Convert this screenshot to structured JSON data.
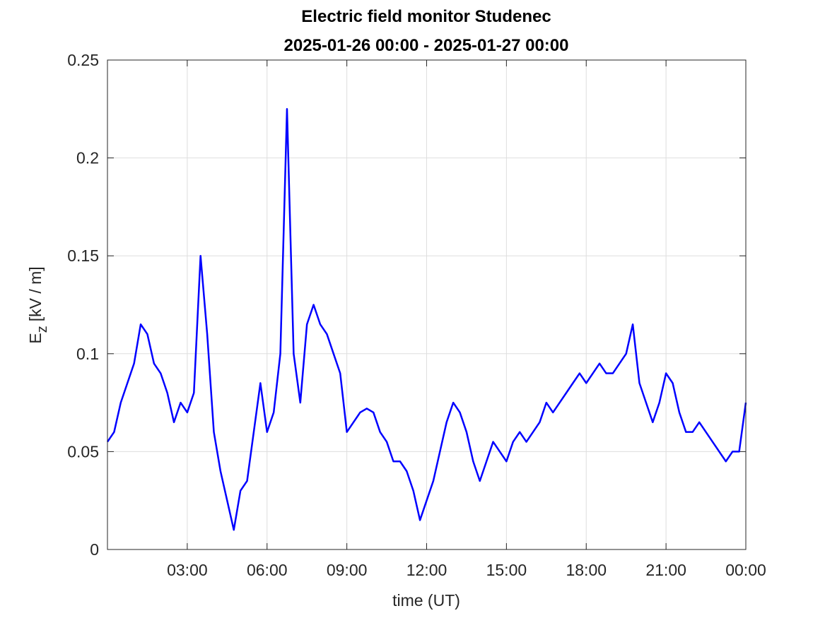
{
  "chart_data": {
    "type": "line",
    "title": "Electric field monitor Studenec",
    "subtitle": "2025-01-26 00:00 - 2025-01-27 00:00",
    "xlabel": "time (UT)",
    "ylabel": {
      "main": "E",
      "sub": "z",
      "unit": "[kV / m]"
    },
    "x": [
      0,
      0.25,
      0.5,
      0.75,
      1,
      1.25,
      1.5,
      1.75,
      2,
      2.25,
      2.5,
      2.75,
      3,
      3.25,
      3.5,
      3.75,
      4,
      4.25,
      4.5,
      4.75,
      5,
      5.25,
      5.5,
      5.75,
      6,
      6.25,
      6.5,
      6.75,
      7,
      7.25,
      7.5,
      7.75,
      8,
      8.25,
      8.5,
      8.75,
      9,
      9.25,
      9.5,
      9.75,
      10,
      10.25,
      10.5,
      10.75,
      11,
      11.25,
      11.5,
      11.75,
      12,
      12.25,
      12.5,
      12.75,
      13,
      13.25,
      13.5,
      13.75,
      14,
      14.25,
      14.5,
      14.75,
      15,
      15.25,
      15.5,
      15.75,
      16,
      16.25,
      16.5,
      16.75,
      17,
      17.25,
      17.5,
      17.75,
      18,
      18.25,
      18.5,
      18.75,
      19,
      19.25,
      19.5,
      19.75,
      20,
      20.25,
      20.5,
      20.75,
      21,
      21.25,
      21.5,
      21.75,
      22,
      22.25,
      22.5,
      22.75,
      23,
      23.25,
      23.5,
      23.75,
      24
    ],
    "series": [
      {
        "name": "Ez",
        "color": "#0000ff",
        "values": [
          0.055,
          0.06,
          0.075,
          0.085,
          0.095,
          0.115,
          0.11,
          0.095,
          0.09,
          0.08,
          0.065,
          0.075,
          0.07,
          0.08,
          0.15,
          0.11,
          0.06,
          0.04,
          0.025,
          0.01,
          0.03,
          0.035,
          0.06,
          0.085,
          0.06,
          0.07,
          0.1,
          0.225,
          0.1,
          0.075,
          0.115,
          0.125,
          0.115,
          0.11,
          0.1,
          0.09,
          0.06,
          0.065,
          0.07,
          0.072,
          0.07,
          0.06,
          0.055,
          0.045,
          0.045,
          0.04,
          0.03,
          0.015,
          0.025,
          0.035,
          0.05,
          0.065,
          0.075,
          0.07,
          0.06,
          0.045,
          0.035,
          0.045,
          0.055,
          0.05,
          0.045,
          0.055,
          0.06,
          0.055,
          0.06,
          0.065,
          0.075,
          0.07,
          0.075,
          0.08,
          0.085,
          0.09,
          0.085,
          0.09,
          0.095,
          0.09,
          0.09,
          0.095,
          0.1,
          0.115,
          0.085,
          0.075,
          0.065,
          0.075,
          0.09,
          0.085,
          0.07,
          0.06,
          0.06,
          0.065,
          0.06,
          0.055,
          0.05,
          0.045,
          0.05,
          0.05,
          0.075
        ]
      }
    ],
    "xlim": [
      0,
      24
    ],
    "xticks": [
      {
        "value": 3,
        "label": "03:00"
      },
      {
        "value": 6,
        "label": "06:00"
      },
      {
        "value": 9,
        "label": "09:00"
      },
      {
        "value": 12,
        "label": "12:00"
      },
      {
        "value": 15,
        "label": "15:00"
      },
      {
        "value": 18,
        "label": "18:00"
      },
      {
        "value": 21,
        "label": "21:00"
      },
      {
        "value": 24,
        "label": "00:00"
      }
    ],
    "ylim": [
      0,
      0.25
    ],
    "yticks": [
      0,
      0.05,
      0.1,
      0.15,
      0.2,
      0.25
    ],
    "grid": true
  }
}
